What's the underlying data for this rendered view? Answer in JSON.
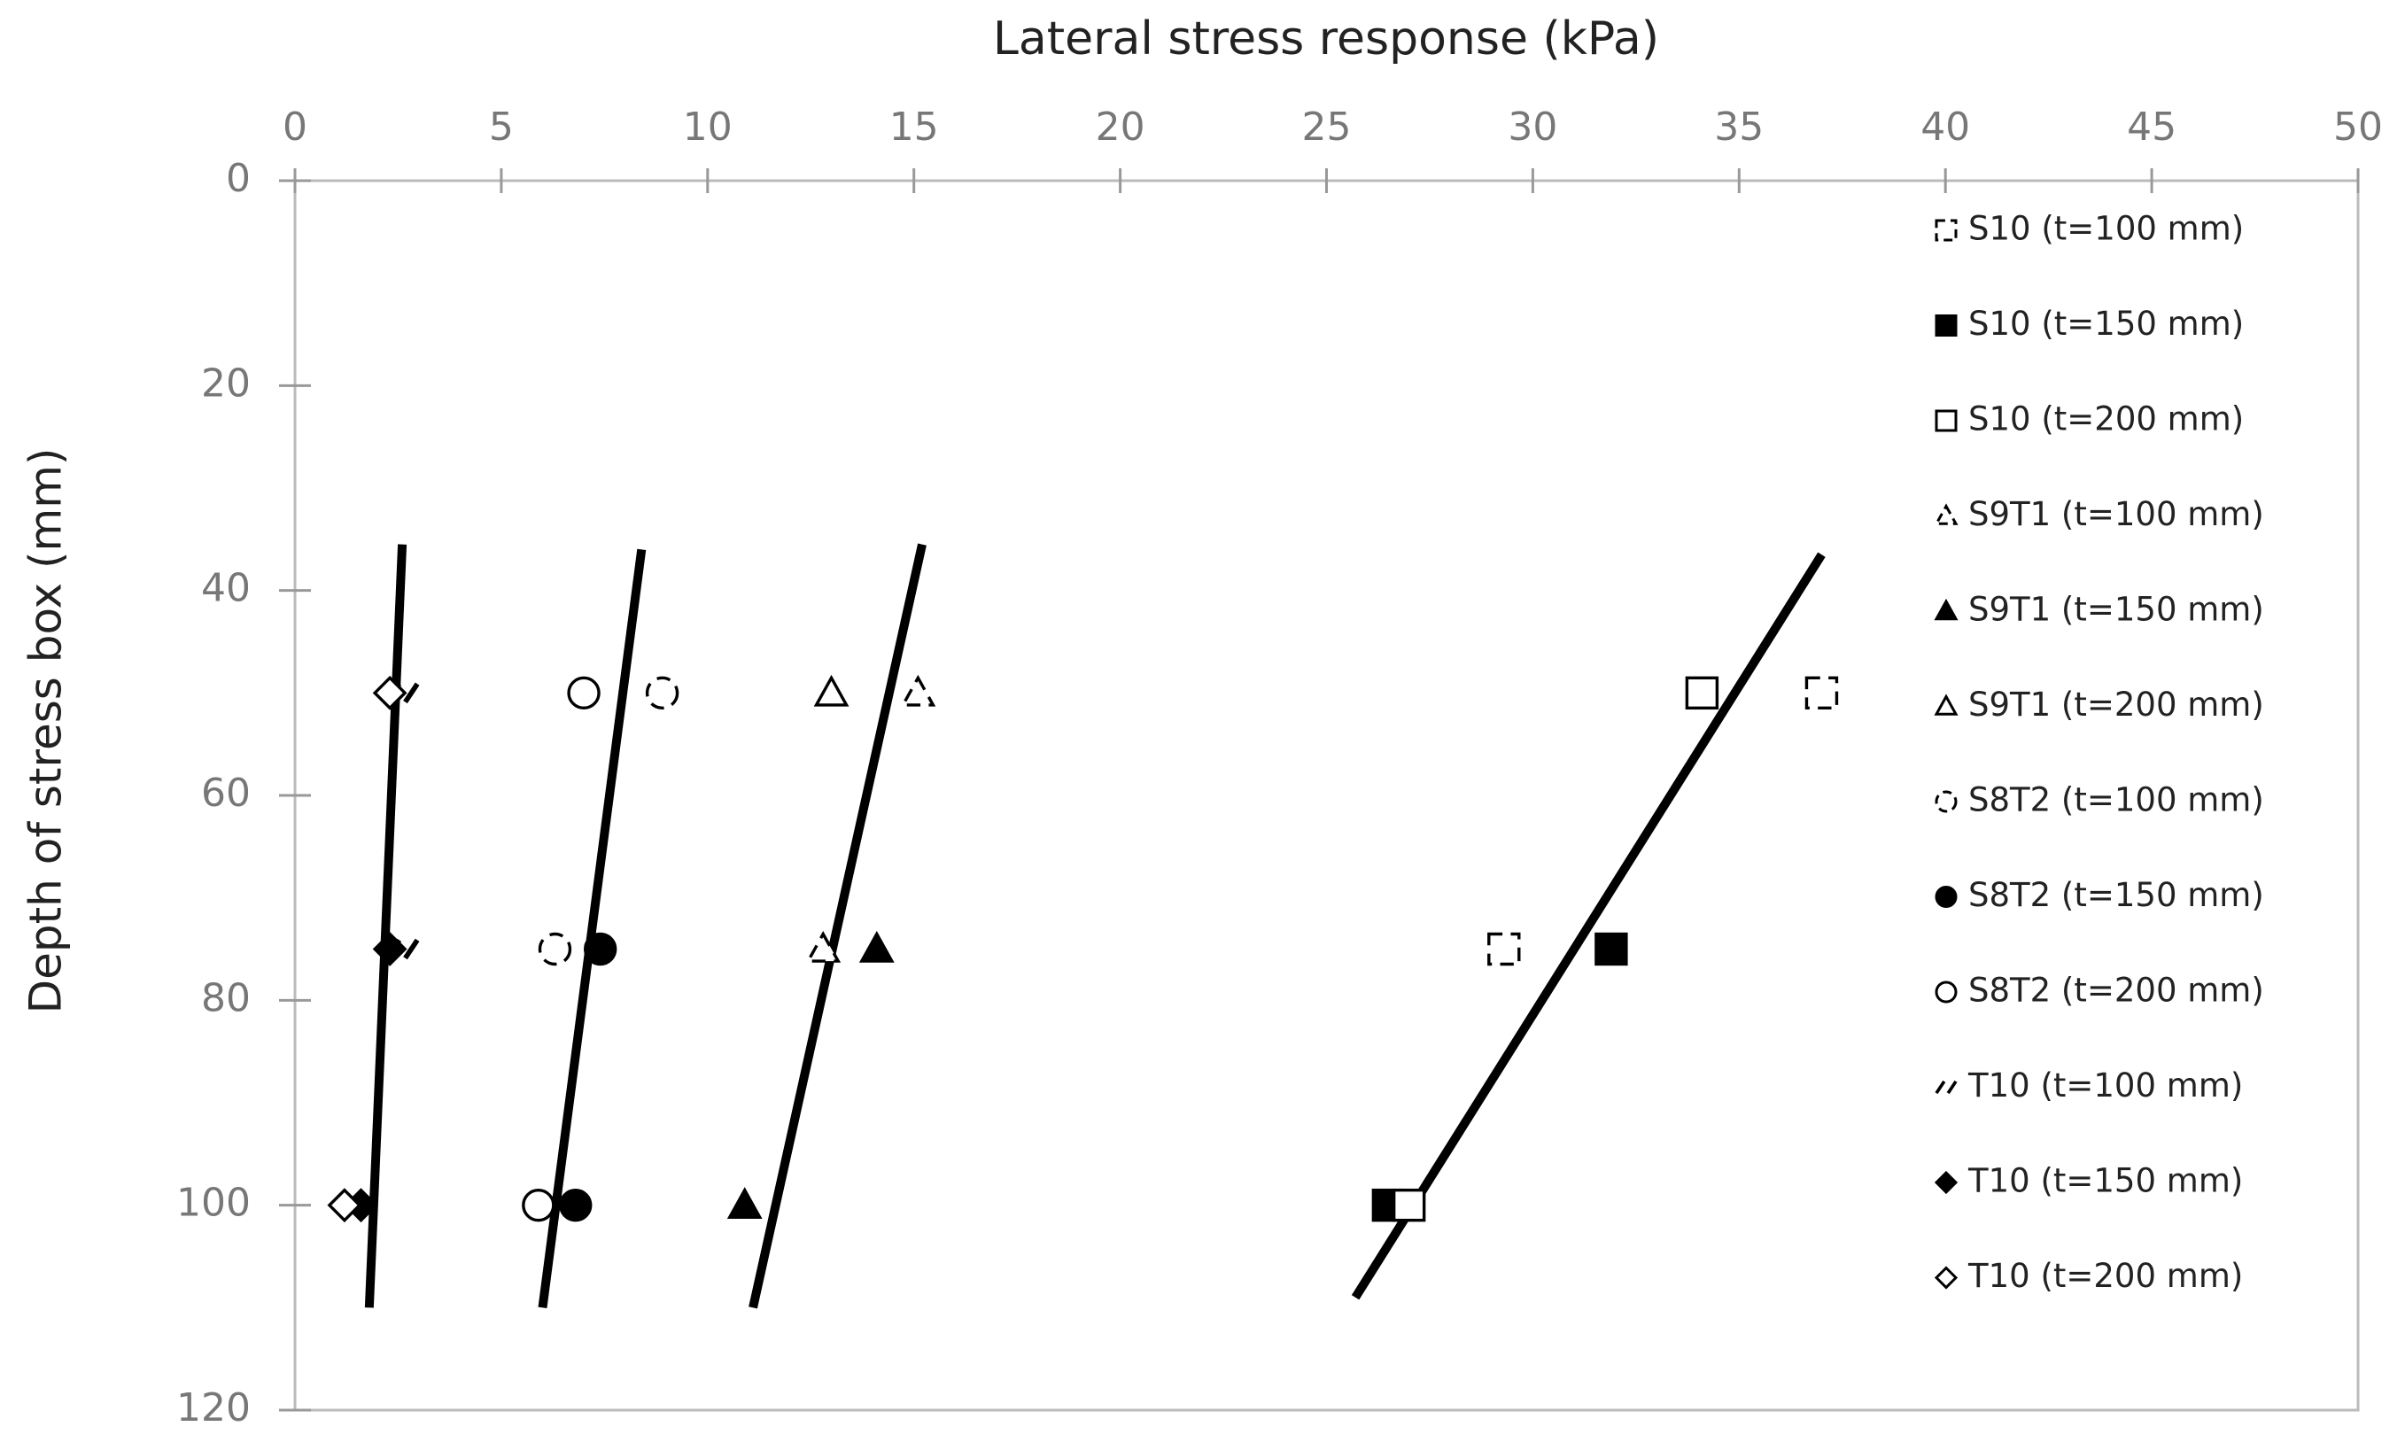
{
  "chart_data": {
    "type": "scatter",
    "title": "Lateral stress response (kPa)",
    "y_label": "Depth of stress box (mm)",
    "y": [
      50,
      75,
      100
    ],
    "xlim": [
      0,
      50
    ],
    "xticks": [
      0,
      5,
      10,
      15,
      20,
      25,
      30,
      35,
      40,
      45,
      50
    ],
    "ylim": [
      0,
      120
    ],
    "yticks": [
      0,
      20,
      40,
      60,
      80,
      100,
      120
    ],
    "y_inverted": true,
    "x_axis_position": "top",
    "legend": "right",
    "series": [
      {
        "name": "S10 (t=100 mm)",
        "marker": "square",
        "style": "dashed",
        "color": "#000000",
        "x": [
          37,
          29.3,
          null
        ]
      },
      {
        "name": "S10 (t=150 mm)",
        "marker": "square",
        "style": "filled",
        "color": "#000000",
        "x": [
          null,
          31.9,
          26.5
        ]
      },
      {
        "name": "S10 (t=200 mm)",
        "marker": "square",
        "style": "open",
        "color": "#000000",
        "x": [
          34.1,
          null,
          27
        ]
      },
      {
        "name": "S9T1 (t=100 mm)",
        "marker": "triangle",
        "style": "dashed",
        "color": "#000000",
        "x": [
          15.1,
          12.8,
          null
        ]
      },
      {
        "name": "S9T1 (t=150 mm)",
        "marker": "triangle",
        "style": "filled",
        "color": "#000000",
        "x": [
          null,
          14.1,
          10.9
        ]
      },
      {
        "name": "S9T1 (t=200 mm)",
        "marker": "triangle",
        "style": "open",
        "color": "#000000",
        "x": [
          13,
          null,
          null
        ]
      },
      {
        "name": "S8T2 (t=100 mm)",
        "marker": "circle",
        "style": "dashed",
        "color": "#000000",
        "x": [
          8.9,
          6.3,
          null
        ]
      },
      {
        "name": "S8T2 (t=150 mm)",
        "marker": "circle",
        "style": "filled",
        "color": "#000000",
        "x": [
          null,
          7.4,
          6.8
        ]
      },
      {
        "name": "S8T2 (t=200 mm)",
        "marker": "circle",
        "style": "open",
        "color": "#000000",
        "x": [
          7,
          null,
          5.9
        ]
      },
      {
        "name": "T10 (t=100 mm)",
        "marker": "slash",
        "style": "dashed",
        "color": "#000000",
        "x": [
          2.6,
          2.6,
          null
        ]
      },
      {
        "name": "T10 (t=150 mm)",
        "marker": "diamond",
        "style": "filled",
        "color": "#000000",
        "x": [
          null,
          2.3,
          1.6
        ]
      },
      {
        "name": "T10 (t=200 mm)",
        "marker": "diamond",
        "style": "open",
        "color": "#000000",
        "x": [
          2.3,
          null,
          1.2
        ]
      }
    ],
    "trendlines": [
      {
        "color": "#000000",
        "x": [
          2.6,
          1.8
        ],
        "y": [
          35.5,
          110
        ]
      },
      {
        "color": "#000000",
        "x": [
          8.4,
          6
        ],
        "y": [
          36,
          110
        ]
      },
      {
        "color": "#000000",
        "x": [
          15.2,
          11.1
        ],
        "y": [
          35.5,
          110
        ]
      },
      {
        "color": "#000000",
        "x": [
          37,
          25.7
        ],
        "y": [
          36.5,
          109
        ]
      }
    ]
  }
}
